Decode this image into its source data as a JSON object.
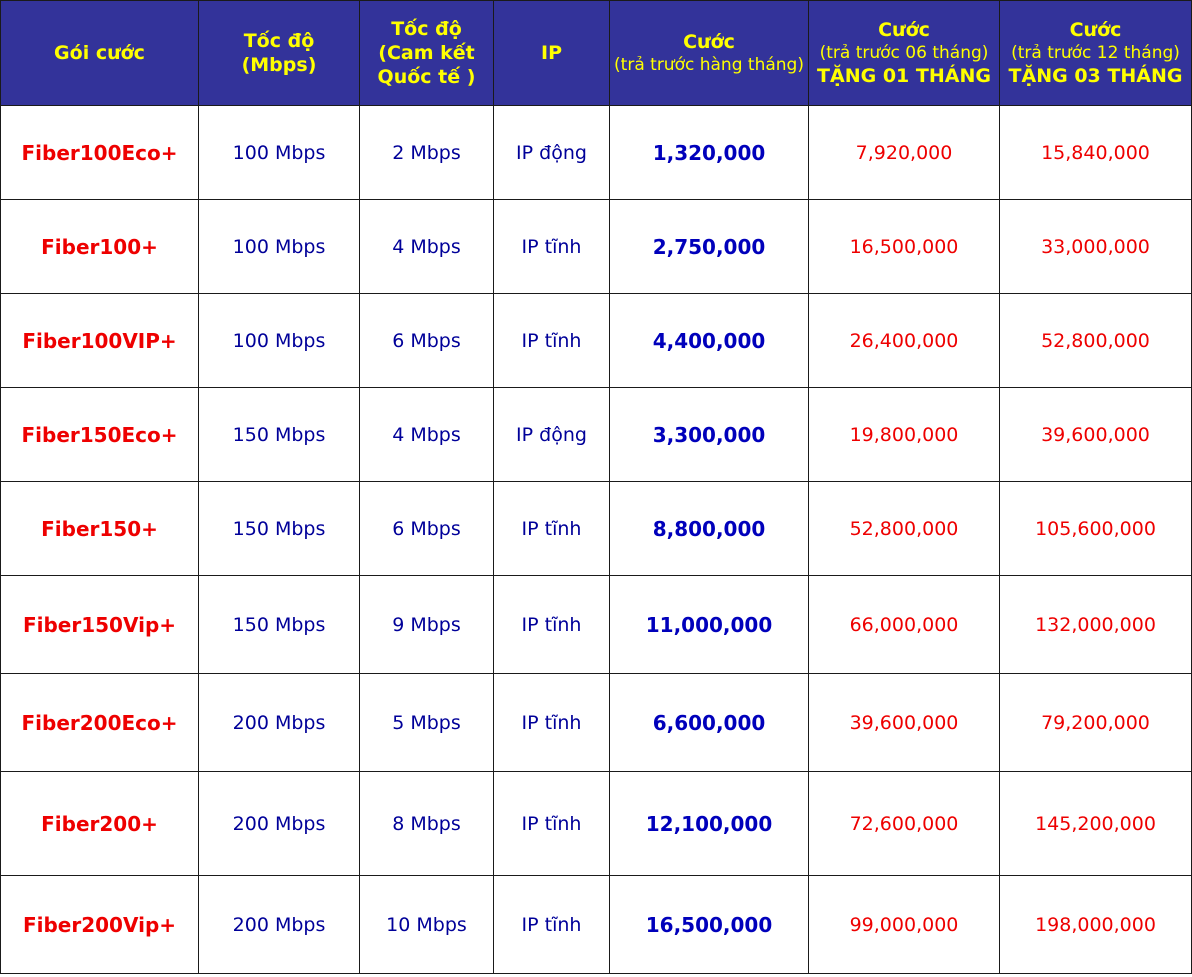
{
  "header": {
    "package": "Gói cước",
    "speed_line1": "Tốc độ",
    "speed_line2": "(Mbps)",
    "intl_line1": "Tốc độ",
    "intl_line2": "(Cam kết",
    "intl_line3": "Quốc tế )",
    "ip": "IP",
    "monthly_title": "Cước",
    "monthly_sub": "(trả trước hàng tháng)",
    "pre6_title": "Cước",
    "pre6_sub": "(trả trước 06 tháng)",
    "pre6_bonus": "TẶNG 01 THÁNG",
    "pre12_title": "Cước",
    "pre12_sub": "(trả trước 12 tháng)",
    "pre12_bonus": "TẶNG 03 THÁNG"
  },
  "rows": [
    {
      "package": "Fiber100Eco+",
      "speed": "100 Mbps",
      "intl": "2 Mbps",
      "ip": "IP động",
      "monthly": "1,320,000",
      "pre6": "7,920,000",
      "pre12": "15,840,000"
    },
    {
      "package": "Fiber100+",
      "speed": "100 Mbps",
      "intl": "4 Mbps",
      "ip": "IP tĩnh",
      "monthly": "2,750,000",
      "pre6": "16,500,000",
      "pre12": "33,000,000"
    },
    {
      "package": "Fiber100VIP+",
      "speed": "100 Mbps",
      "intl": "6 Mbps",
      "ip": "IP tĩnh",
      "monthly": "4,400,000",
      "pre6": "26,400,000",
      "pre12": "52,800,000"
    },
    {
      "package": "Fiber150Eco+",
      "speed": "150 Mbps",
      "intl": "4 Mbps",
      "ip": "IP động",
      "monthly": "3,300,000",
      "pre6": "19,800,000",
      "pre12": "39,600,000"
    },
    {
      "package": "Fiber150+",
      "speed": "150 Mbps",
      "intl": "6 Mbps",
      "ip": "IP tĩnh",
      "monthly": "8,800,000",
      "pre6": "52,800,000",
      "pre12": "105,600,000"
    },
    {
      "package": "Fiber150Vip+",
      "speed": "150 Mbps",
      "intl": "9 Mbps",
      "ip": "IP tĩnh",
      "monthly": "11,000,000",
      "pre6": "66,000,000",
      "pre12": "132,000,000"
    },
    {
      "package": "Fiber200Eco+",
      "speed": "200 Mbps",
      "intl": "5 Mbps",
      "ip": "IP tĩnh",
      "monthly": "6,600,000",
      "pre6": "39,600,000",
      "pre12": "79,200,000"
    },
    {
      "package": "Fiber200+",
      "speed": "200 Mbps",
      "intl": "8 Mbps",
      "ip": "IP tĩnh",
      "monthly": "12,100,000",
      "pre6": "72,600,000",
      "pre12": "145,200,000"
    },
    {
      "package": "Fiber200Vip+",
      "speed": "200 Mbps",
      "intl": "10 Mbps",
      "ip": "IP tĩnh",
      "monthly": "16,500,000",
      "pre6": "99,000,000",
      "pre12": "198,000,000"
    }
  ]
}
